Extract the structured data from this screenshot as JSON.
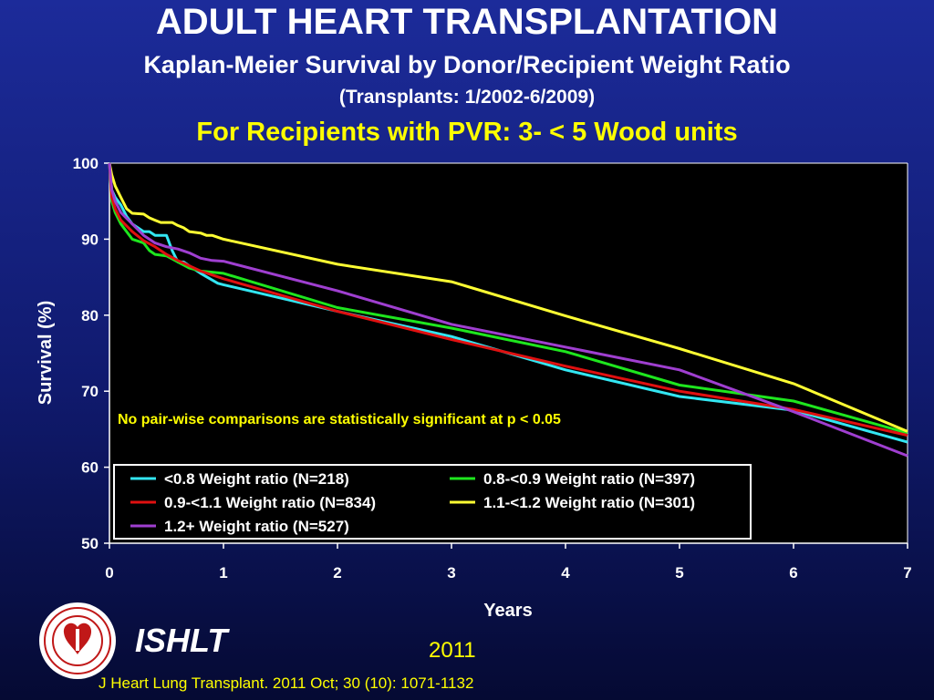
{
  "header": {
    "title": "ADULT HEART TRANSPLANTATION",
    "subtitle": "Kaplan-Meier Survival by Donor/Recipient Weight Ratio",
    "date_range": "(Transplants: 1/2002-6/2009)",
    "pvr_line": "For Recipients with PVR: 3- < 5 Wood units"
  },
  "footer": {
    "brand": "ISHLT",
    "year": "2011",
    "citation": "J Heart Lung Transplant. 2011 Oct; 30 (10): 1071-1132"
  },
  "colors": {
    "cyan": "#33e6f2",
    "green": "#1ee61e",
    "red": "#e01010",
    "yellow": "#ffff33",
    "purple": "#9f3fd0"
  },
  "chart_data": {
    "type": "line",
    "xlabel": "Years",
    "ylabel": "Survival (%)",
    "xlim": [
      0,
      7
    ],
    "ylim": [
      50,
      100
    ],
    "x_ticks": [
      "0",
      "1",
      "2",
      "3",
      "4",
      "5",
      "6",
      "7"
    ],
    "y_ticks": [
      "50",
      "60",
      "70",
      "80",
      "90",
      "100"
    ],
    "grid": false,
    "legend_position": "bottom-left",
    "annotation": "No pair-wise comparisons are statistically significant at p < 0.05",
    "series": [
      {
        "name": "<0.8 Weight ratio (N=218)",
        "color": "#33e6f2",
        "points": [
          [
            0,
            100
          ],
          [
            0.02,
            96.5
          ],
          [
            0.05,
            95.5
          ],
          [
            0.1,
            94.5
          ],
          [
            0.15,
            93
          ],
          [
            0.2,
            92
          ],
          [
            0.3,
            91
          ],
          [
            0.35,
            91
          ],
          [
            0.4,
            90.5
          ],
          [
            0.5,
            90.5
          ],
          [
            0.55,
            88.5
          ],
          [
            0.6,
            87
          ],
          [
            0.65,
            87
          ],
          [
            0.7,
            86.5
          ],
          [
            0.8,
            85.5
          ],
          [
            0.95,
            84.2
          ],
          [
            1,
            84
          ],
          [
            2,
            80.5
          ],
          [
            3,
            77.2
          ],
          [
            4,
            72.8
          ],
          [
            5,
            69.3
          ],
          [
            6,
            67.5
          ],
          [
            7,
            63.3
          ]
        ]
      },
      {
        "name": "0.8-<0.9 Weight ratio (N=397)",
        "color": "#1ee61e",
        "points": [
          [
            0,
            100
          ],
          [
            0.02,
            95
          ],
          [
            0.05,
            93.5
          ],
          [
            0.1,
            92
          ],
          [
            0.15,
            91
          ],
          [
            0.2,
            90
          ],
          [
            0.3,
            89.5
          ],
          [
            0.35,
            88.5
          ],
          [
            0.4,
            88
          ],
          [
            0.5,
            87.8
          ],
          [
            0.6,
            87
          ],
          [
            0.7,
            86.2
          ],
          [
            0.8,
            85.8
          ],
          [
            1,
            85.5
          ],
          [
            2,
            81
          ],
          [
            3,
            78.3
          ],
          [
            4,
            75.2
          ],
          [
            5,
            70.8
          ],
          [
            6,
            68.7
          ],
          [
            7,
            64.5
          ]
        ]
      },
      {
        "name": "0.9-<1.1 Weight ratio (N=834)",
        "color": "#e01010",
        "points": [
          [
            0,
            100
          ],
          [
            0.02,
            95.5
          ],
          [
            0.05,
            94
          ],
          [
            0.1,
            92.5
          ],
          [
            0.2,
            91
          ],
          [
            0.3,
            89.8
          ],
          [
            0.4,
            89
          ],
          [
            0.5,
            88
          ],
          [
            0.6,
            87.2
          ],
          [
            0.7,
            86.5
          ],
          [
            0.8,
            85.8
          ],
          [
            1,
            84.8
          ],
          [
            2,
            80.5
          ],
          [
            3,
            76.8
          ],
          [
            4,
            73.3
          ],
          [
            5,
            70
          ],
          [
            6,
            67.6
          ],
          [
            7,
            64.2
          ]
        ]
      },
      {
        "name": "1.1-<1.2 Weight ratio (N=301)",
        "color": "#ffff33",
        "points": [
          [
            0,
            100
          ],
          [
            0.02,
            98.5
          ],
          [
            0.05,
            97
          ],
          [
            0.1,
            95.5
          ],
          [
            0.15,
            94
          ],
          [
            0.2,
            93.4
          ],
          [
            0.3,
            93.3
          ],
          [
            0.35,
            92.8
          ],
          [
            0.4,
            92.5
          ],
          [
            0.45,
            92.2
          ],
          [
            0.55,
            92.2
          ],
          [
            0.6,
            91.8
          ],
          [
            0.65,
            91.5
          ],
          [
            0.7,
            91
          ],
          [
            0.8,
            90.8
          ],
          [
            0.85,
            90.5
          ],
          [
            0.9,
            90.5
          ],
          [
            1,
            90
          ],
          [
            2,
            86.7
          ],
          [
            3,
            84.4
          ],
          [
            4,
            79.9
          ],
          [
            5,
            75.6
          ],
          [
            6,
            71
          ],
          [
            7,
            64.7
          ]
        ]
      },
      {
        "name": "1.2+ Weight ratio (N=527)",
        "color": "#9f3fd0",
        "points": [
          [
            0,
            100
          ],
          [
            0.02,
            96.5
          ],
          [
            0.05,
            95
          ],
          [
            0.1,
            93.5
          ],
          [
            0.2,
            92
          ],
          [
            0.3,
            90.5
          ],
          [
            0.4,
            89.5
          ],
          [
            0.5,
            89
          ],
          [
            0.6,
            88.7
          ],
          [
            0.7,
            88.2
          ],
          [
            0.8,
            87.5
          ],
          [
            0.9,
            87.2
          ],
          [
            1,
            87.1
          ],
          [
            2,
            83.2
          ],
          [
            3,
            78.8
          ],
          [
            4,
            75.8
          ],
          [
            5,
            72.8
          ],
          [
            6,
            67.3
          ],
          [
            7,
            61.5
          ]
        ]
      }
    ]
  }
}
